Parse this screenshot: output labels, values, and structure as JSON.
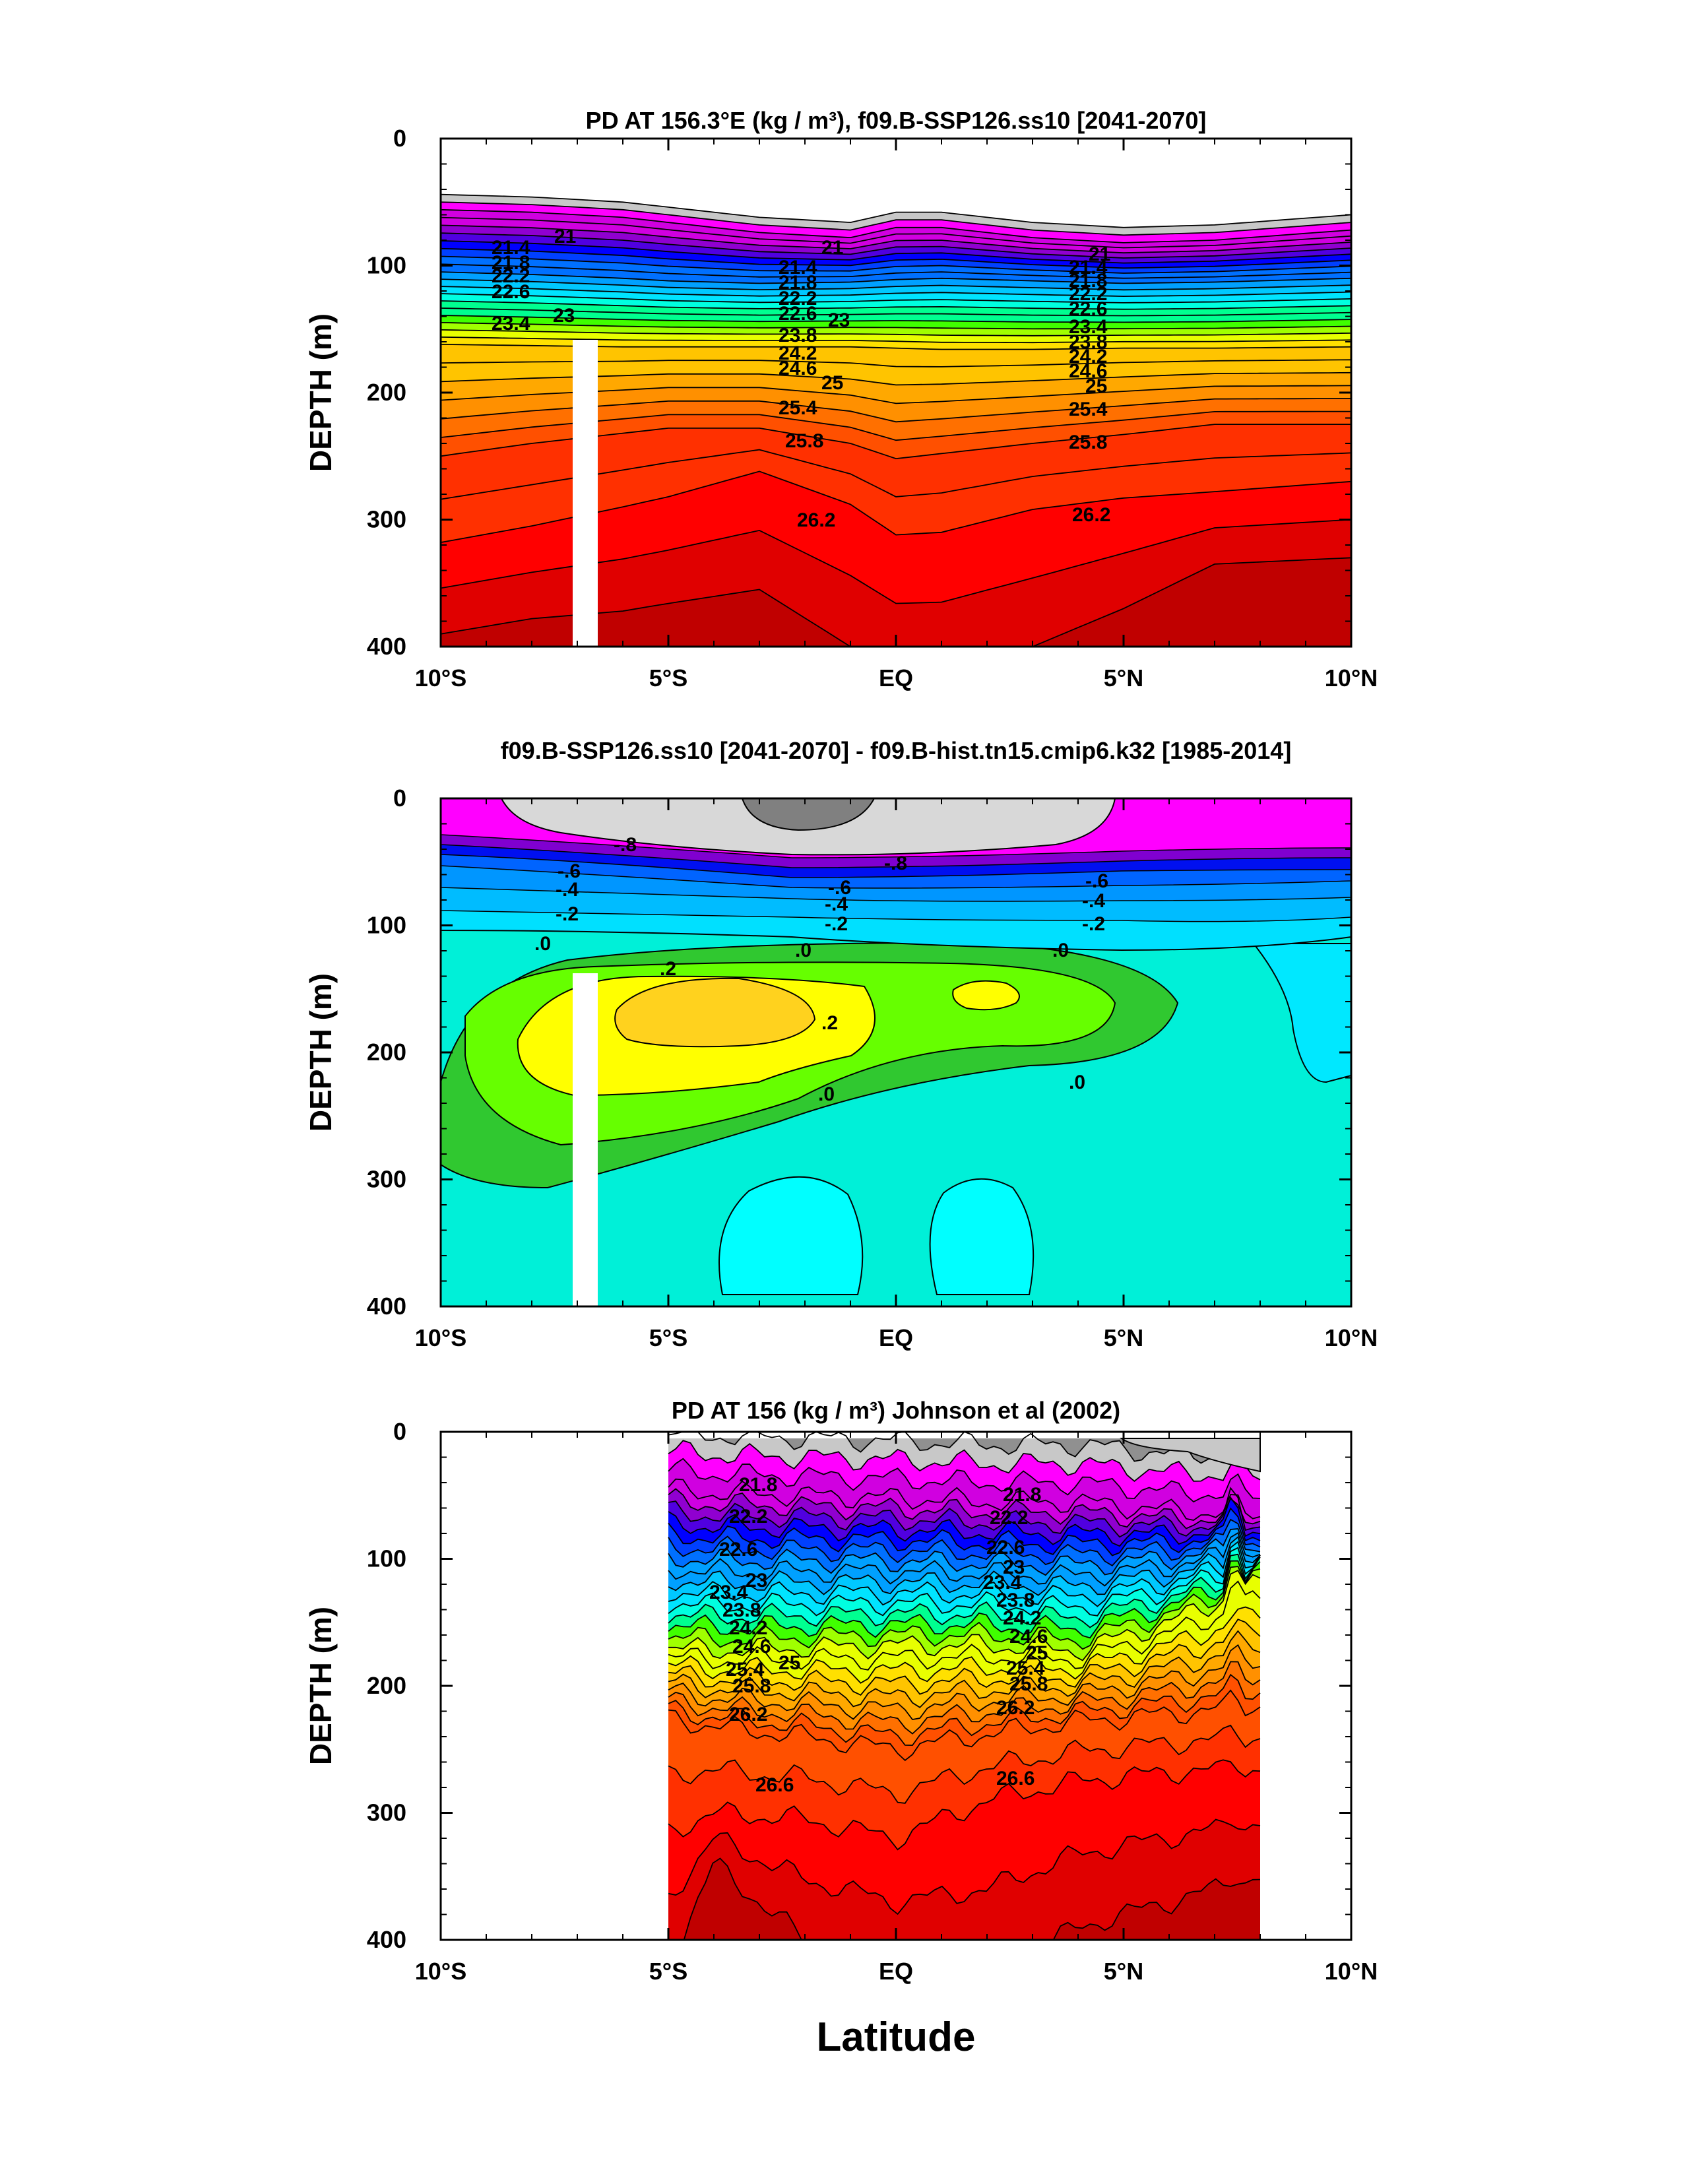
{
  "figure": {
    "xlabel": "Latitude"
  },
  "chart_data": [
    {
      "type": "contour",
      "title": "PD AT 156.3°E (kg / m³), f09.B-SSP126.ss10 [2041-2070]",
      "ylabel": "DEPTH (m)",
      "x_ticks": [
        "10°S",
        "5°S",
        "EQ",
        "5°N",
        "10°N"
      ],
      "x_range": [
        -10,
        10
      ],
      "y_ticks": [
        "0",
        "100",
        "200",
        "300",
        "400"
      ],
      "y_range": [
        0,
        400
      ],
      "y_inverted": true,
      "contour_interval": 0.2,
      "labeled_levels": [
        "21",
        "21.4",
        "21.8",
        "22.2",
        "22.6",
        "23",
        "23.4",
        "23.8",
        "24.2",
        "24.6",
        "25",
        "25.4",
        "25.8",
        "26.2"
      ],
      "mask_lat_range": [
        -7.0,
        -6.5
      ],
      "mask_depth_top": 145,
      "isopycnal_depths": {
        "lat": [
          -10,
          -8,
          -6,
          -5,
          -3,
          -1,
          0,
          1,
          3,
          5,
          7,
          10
        ],
        "sigma_21": [
          56,
          58,
          62,
          66,
          74,
          78,
          70,
          70,
          78,
          82,
          80,
          72
        ],
        "sigma_22_6": [
          105,
          107,
          110,
          112,
          114,
          113,
          111,
          110,
          112,
          114,
          113,
          110
        ],
        "sigma_24_6": [
          162,
          163,
          164,
          164,
          164,
          164,
          165,
          166,
          166,
          165,
          165,
          164
        ],
        "sigma_25_8": [
          250,
          240,
          232,
          228,
          228,
          240,
          252,
          248,
          240,
          233,
          225,
          225
        ],
        "sigma_26_2": [
          318,
          305,
          290,
          282,
          262,
          288,
          312,
          310,
          292,
          283,
          278,
          270
        ]
      }
    },
    {
      "type": "contour",
      "title": "f09.B-SSP126.ss10 [2041-2070] - f09.B-hist.tn15.cmip6.k32 [1985-2014]",
      "ylabel": "DEPTH (m)",
      "x_ticks": [
        "10°S",
        "5°S",
        "EQ",
        "5°N",
        "10°N"
      ],
      "x_range": [
        -10,
        10
      ],
      "y_ticks": [
        "0",
        "100",
        "200",
        "300",
        "400"
      ],
      "y_range": [
        0,
        400
      ],
      "y_inverted": true,
      "contour_interval": 0.1,
      "labeled_levels": [
        "-.8",
        "-.6",
        "-.4",
        "-.2",
        ".0",
        ".2"
      ],
      "mask_lat_range": [
        -7.0,
        -6.5
      ],
      "mask_depth_top": 145,
      "features": [
        {
          "name": "surface negative anomaly core",
          "value": -0.9,
          "lat_range": [
            -9,
            5
          ],
          "depth_range": [
            0,
            55
          ]
        },
        {
          "name": "subsurface positive anomaly west",
          "value": 0.3,
          "lat_range": [
            -8,
            -2
          ],
          "depth_range": [
            150,
            200
          ]
        },
        {
          "name": "subsurface positive anomaly east",
          "value": 0.3,
          "lat_range": [
            1,
            3
          ],
          "depth_range": [
            150,
            175
          ]
        }
      ]
    },
    {
      "type": "contour",
      "title": "PD AT 156 (kg / m³) Johnson et al (2002)",
      "ylabel": "DEPTH (m)",
      "x_ticks": [
        "10°S",
        "5°S",
        "EQ",
        "5°N",
        "10°N"
      ],
      "x_range": [
        -10,
        10
      ],
      "y_ticks": [
        "0",
        "100",
        "200",
        "300",
        "400"
      ],
      "y_range": [
        0,
        400
      ],
      "y_inverted": true,
      "contour_interval": 0.2,
      "data_lat_range": [
        -5,
        8
      ],
      "labeled_levels": [
        "21.8",
        "22.2",
        "22.6",
        "23",
        "23.4",
        "23.8",
        "24.2",
        "24.6",
        "25",
        "25.4",
        "25.8",
        "26.2",
        "26.6"
      ],
      "isopycnal_depths": {
        "lat": [
          -5,
          -4,
          -2,
          0,
          2,
          4,
          6,
          8
        ],
        "sigma_21_8": [
          45,
          48,
          50,
          52,
          55,
          55,
          62,
          65
        ],
        "sigma_24_6": [
          170,
          172,
          170,
          168,
          168,
          172,
          150,
          120
        ],
        "sigma_26_2": [
          225,
          232,
          240,
          250,
          238,
          228,
          222,
          215
        ]
      }
    }
  ]
}
